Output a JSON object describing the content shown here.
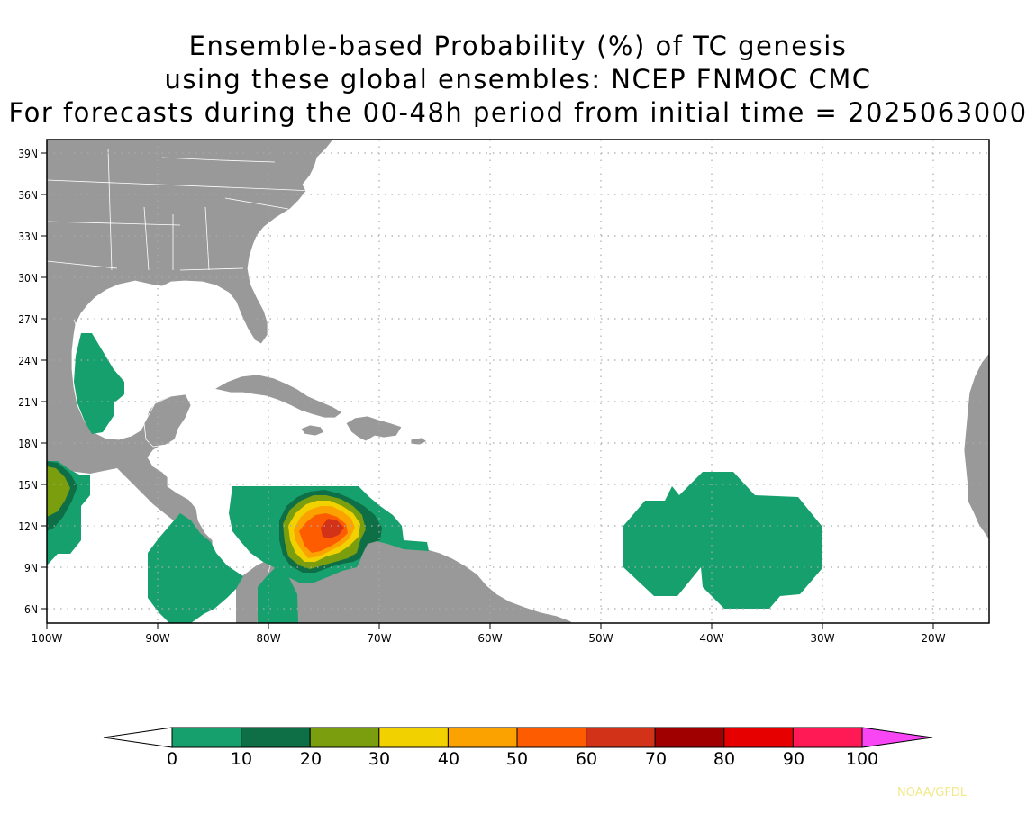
{
  "title": {
    "line1": "Ensemble-based Probability (%) of TC genesis",
    "line2": "using these global ensembles:   NCEP FNMOC CMC",
    "line3": "For forecasts during the 00-48h period from initial time = 2025063000"
  },
  "map": {
    "lat_labels": [
      "39N",
      "36N",
      "33N",
      "30N",
      "27N",
      "24N",
      "21N",
      "18N",
      "15N",
      "12N",
      "9N",
      "6N"
    ],
    "lon_labels": [
      "100W",
      "90W",
      "80W",
      "70W",
      "60W",
      "50W",
      "40W",
      "30W",
      "20W"
    ],
    "land_color": "#999999",
    "ocean_color": "#ffffff"
  },
  "colorbar": {
    "labels": [
      "0",
      "10",
      "20",
      "30",
      "40",
      "50",
      "60",
      "70",
      "80",
      "90",
      "100"
    ],
    "colors": [
      "#16a06e",
      "#0e6e45",
      "#7a9e0e",
      "#f2d100",
      "#fba200",
      "#fd5c00",
      "#d23218",
      "#a00000",
      "#e60000",
      "#ff1a55",
      "#f846f5"
    ]
  },
  "credit": "NOAA/GFDL"
}
